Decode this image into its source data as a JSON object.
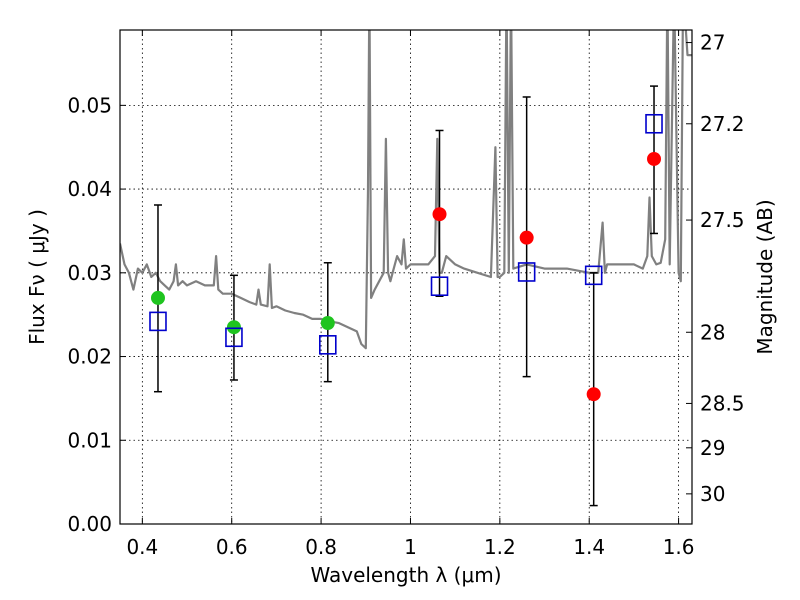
{
  "chart_data": {
    "type": "scatter",
    "xlabel": "Wavelength  λ (μm)",
    "ylabel": "Flux  Fν  ( μJy )",
    "ylabel_right": "Magnitude (AB)",
    "xlim": [
      0.35,
      1.63
    ],
    "ylim": [
      0.0,
      0.059
    ],
    "x_ticks": [
      0.4,
      0.6,
      0.8,
      1.0,
      1.2,
      1.4,
      1.6
    ],
    "x_tick_labels": [
      "0.4",
      "0.6",
      "0.8",
      "1",
      "1.2",
      "1.4",
      "1.6"
    ],
    "y_ticks": [
      0.0,
      0.01,
      0.02,
      0.03,
      0.04,
      0.05
    ],
    "y_tick_labels": [
      "0.00",
      "0.01",
      "0.02",
      "0.03",
      "0.04",
      "0.05"
    ],
    "right_ticks": [
      {
        "flux": 0.0575,
        "label": "27"
      },
      {
        "flux": 0.0478,
        "label": "27.2"
      },
      {
        "flux": 0.0363,
        "label": "27.5"
      },
      {
        "flux": 0.0229,
        "label": "28"
      },
      {
        "flux": 0.0144,
        "label": "28.5"
      },
      {
        "flux": 0.0091,
        "label": "29"
      },
      {
        "flux": 0.0036,
        "label": "30"
      }
    ],
    "grid": true,
    "colors": {
      "spectrum": "#808080",
      "observed_optical": "#1fc41f",
      "observed_nir": "#ff0000",
      "model": "#0000cc",
      "error_bar": "#000000"
    },
    "series": [
      {
        "kind": "spectrum",
        "x": [
          0.35,
          0.36,
          0.37,
          0.38,
          0.39,
          0.4,
          0.41,
          0.42,
          0.43,
          0.44,
          0.45,
          0.46,
          0.47,
          0.475,
          0.48,
          0.49,
          0.5,
          0.52,
          0.54,
          0.56,
          0.565,
          0.57,
          0.58,
          0.6,
          0.62,
          0.64,
          0.655,
          0.66,
          0.665,
          0.68,
          0.685,
          0.69,
          0.7,
          0.72,
          0.74,
          0.76,
          0.78,
          0.8,
          0.82,
          0.84,
          0.86,
          0.88,
          0.89,
          0.9,
          0.905,
          0.908,
          0.912,
          0.92,
          0.93,
          0.94,
          0.945,
          0.95,
          0.955,
          0.96,
          0.97,
          0.98,
          0.985,
          0.99,
          1.0,
          1.02,
          1.04,
          1.055,
          1.06,
          1.065,
          1.07,
          1.08,
          1.1,
          1.12,
          1.15,
          1.18,
          1.19,
          1.195,
          1.2,
          1.21,
          1.215,
          1.22,
          1.225,
          1.23,
          1.26,
          1.3,
          1.35,
          1.4,
          1.42,
          1.43,
          1.435,
          1.44,
          1.46,
          1.5,
          1.52,
          1.53,
          1.535,
          1.54,
          1.55,
          1.56,
          1.57,
          1.575,
          1.58,
          1.59,
          1.6,
          1.605,
          1.61,
          1.62,
          1.63
        ],
        "y": [
          0.0335,
          0.031,
          0.03,
          0.028,
          0.0305,
          0.03,
          0.031,
          0.0295,
          0.03,
          0.029,
          0.0285,
          0.028,
          0.029,
          0.031,
          0.0285,
          0.029,
          0.0285,
          0.029,
          0.0285,
          0.0285,
          0.032,
          0.028,
          0.0275,
          0.0275,
          0.027,
          0.0265,
          0.0262,
          0.028,
          0.0262,
          0.026,
          0.031,
          0.0258,
          0.026,
          0.0255,
          0.0252,
          0.025,
          0.0245,
          0.0245,
          0.0242,
          0.024,
          0.0235,
          0.023,
          0.0215,
          0.021,
          0.04,
          0.064,
          0.027,
          0.028,
          0.029,
          0.03,
          0.046,
          0.03,
          0.029,
          0.03,
          0.032,
          0.031,
          0.034,
          0.0305,
          0.031,
          0.031,
          0.031,
          0.032,
          0.046,
          0.03,
          0.03,
          0.032,
          0.031,
          0.0305,
          0.03,
          0.0295,
          0.045,
          0.0295,
          0.0295,
          0.03,
          0.064,
          0.03,
          0.064,
          0.0305,
          0.031,
          0.0305,
          0.0305,
          0.03,
          0.03,
          0.036,
          0.03,
          0.031,
          0.031,
          0.031,
          0.0305,
          0.032,
          0.039,
          0.032,
          0.031,
          0.0312,
          0.034,
          0.064,
          0.031,
          0.064,
          0.03,
          0.029,
          0.064,
          0.056,
          0.056
        ]
      },
      {
        "kind": "observed",
        "x": [
          0.435,
          0.605,
          0.815
        ],
        "y": [
          0.027,
          0.0235,
          0.024
        ],
        "color": "#1fc41f"
      },
      {
        "kind": "observed",
        "x": [
          1.065,
          1.26,
          1.41,
          1.545
        ],
        "y": [
          0.037,
          0.0342,
          0.0155,
          0.0436
        ],
        "color": "#ff0000"
      },
      {
        "kind": "model",
        "x": [
          0.435,
          0.605,
          0.815,
          1.065,
          1.26,
          1.41,
          1.545
        ],
        "y": [
          0.0242,
          0.0223,
          0.0214,
          0.0284,
          0.0301,
          0.0297,
          0.0478
        ]
      },
      {
        "kind": "error",
        "x": [
          0.435,
          0.605,
          0.815,
          1.065,
          1.26,
          1.41,
          1.545
        ],
        "ylow": [
          0.0158,
          0.0172,
          0.017,
          0.0272,
          0.0176,
          0.0022,
          0.0347
        ],
        "yhigh": [
          0.0381,
          0.0297,
          0.0312,
          0.047,
          0.051,
          0.03,
          0.0523
        ]
      }
    ]
  }
}
